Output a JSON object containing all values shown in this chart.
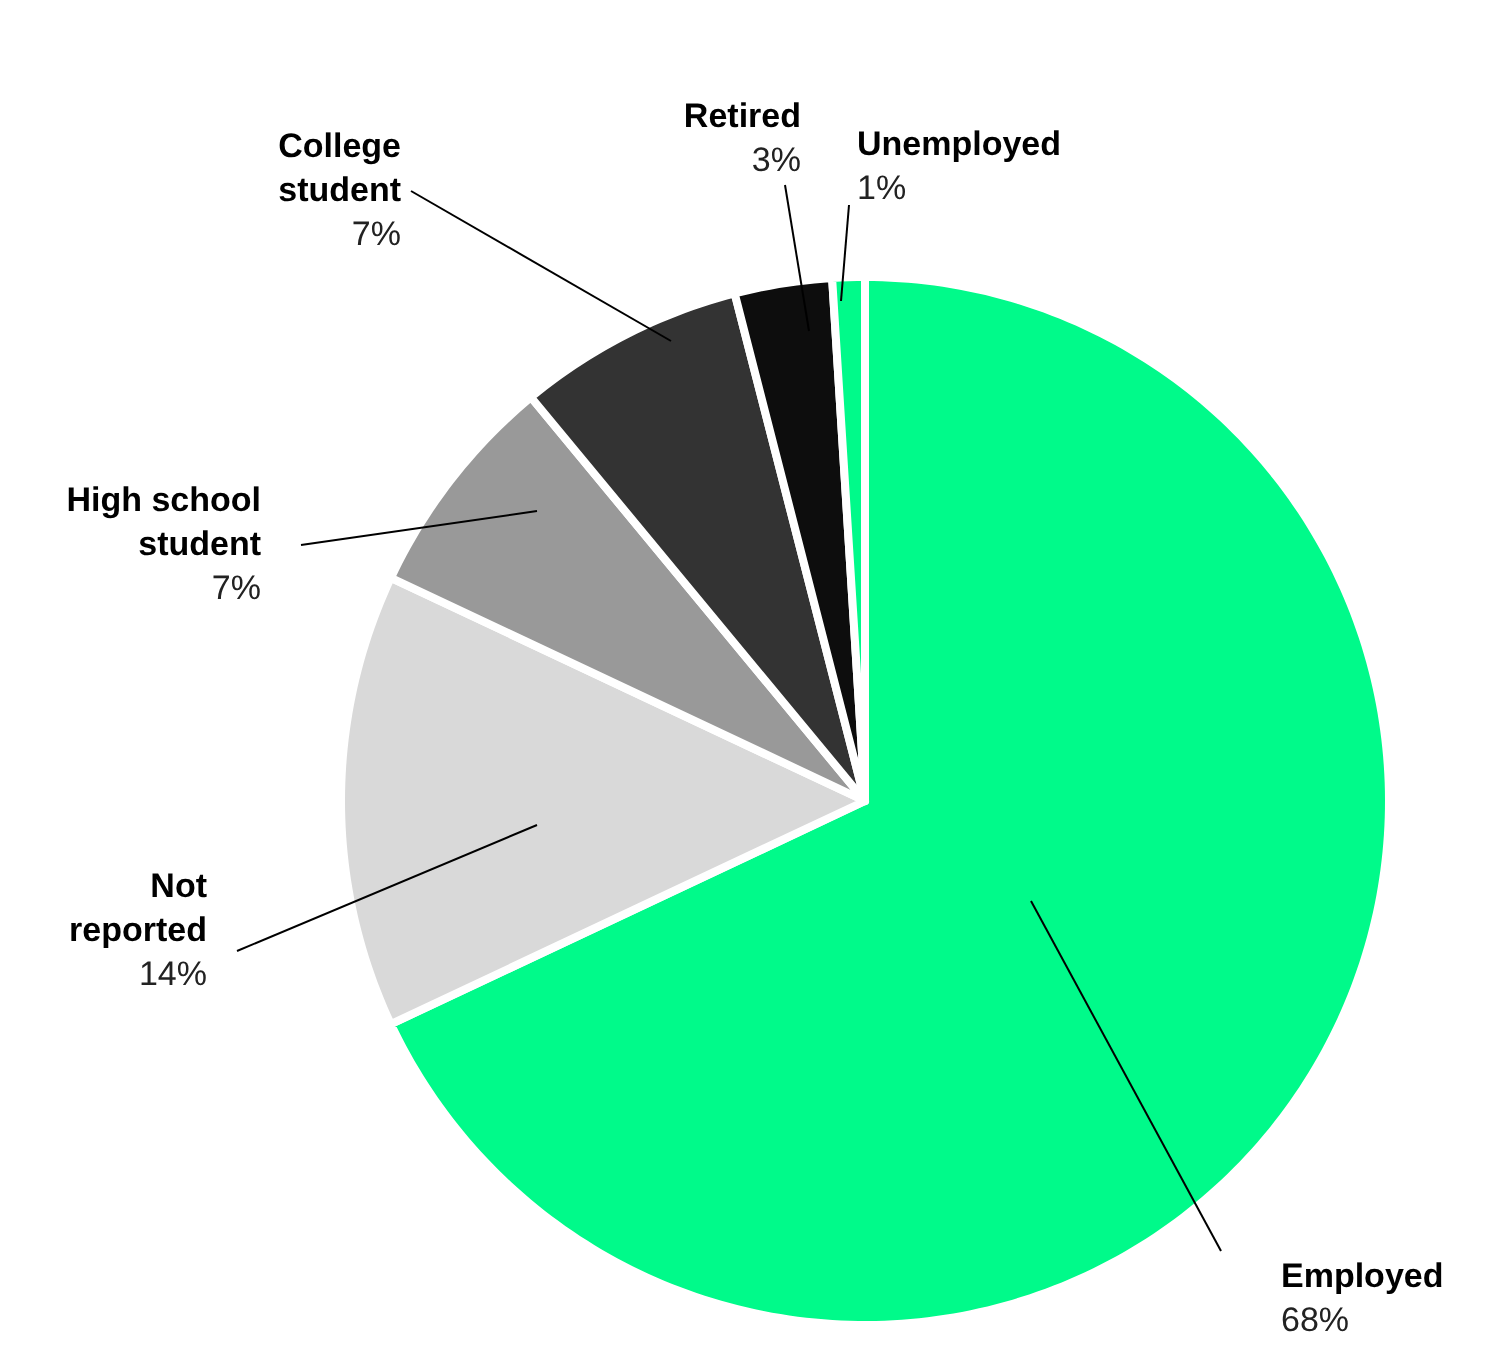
{
  "chart_data": {
    "type": "pie",
    "categories": [
      "Employed",
      "Not\nreported",
      "High school\nstudent",
      "College\nstudent",
      "Retired",
      "Unemployed"
    ],
    "values": [
      68,
      14,
      7,
      7,
      3,
      1
    ],
    "value_labels": [
      "68%",
      "14%",
      "7%",
      "7%",
      "3%",
      "1%"
    ],
    "colors": [
      "#00fa8a",
      "#d9d9d9",
      "#999999",
      "#333333",
      "#0d0d0d",
      "#00fa8a"
    ]
  }
}
